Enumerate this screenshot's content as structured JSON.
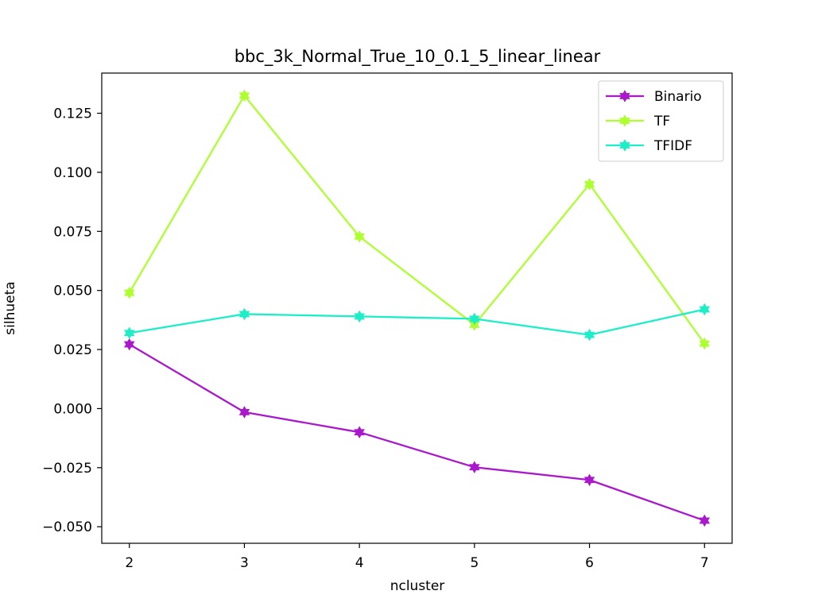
{
  "chart_data": {
    "type": "line",
    "title": "bbc_3k_Normal_True_10_0.1_5_linear_linear",
    "xlabel": "ncluster",
    "ylabel": "silhueta",
    "x": [
      2,
      3,
      4,
      5,
      6,
      7
    ],
    "xlim": [
      1.76,
      7.24
    ],
    "ylim": [
      -0.057,
      0.142
    ],
    "xticks": [
      2,
      3,
      4,
      5,
      6,
      7
    ],
    "xtick_labels": [
      "2",
      "3",
      "4",
      "5",
      "6",
      "7"
    ],
    "yticks": [
      -0.05,
      -0.025,
      0.0,
      0.025,
      0.05,
      0.075,
      0.1,
      0.125
    ],
    "ytick_labels": [
      "−0.050",
      "−0.025",
      "0.000",
      "0.025",
      "0.050",
      "0.075",
      "0.100",
      "0.125"
    ],
    "grid": false,
    "legend_position": "upper right",
    "series": [
      {
        "name": "Binario",
        "color": "#aa18cc",
        "values": [
          0.0272,
          -0.0015,
          -0.01,
          -0.0248,
          -0.0302,
          -0.0474
        ]
      },
      {
        "name": "TF",
        "color": "#adff2f",
        "values": [
          0.049,
          0.1325,
          0.0728,
          0.0355,
          0.095,
          0.0275
        ]
      },
      {
        "name": "TFIDF",
        "color": "#1deec8",
        "values": [
          0.032,
          0.04,
          0.039,
          0.038,
          0.0312,
          0.042
        ]
      }
    ]
  }
}
